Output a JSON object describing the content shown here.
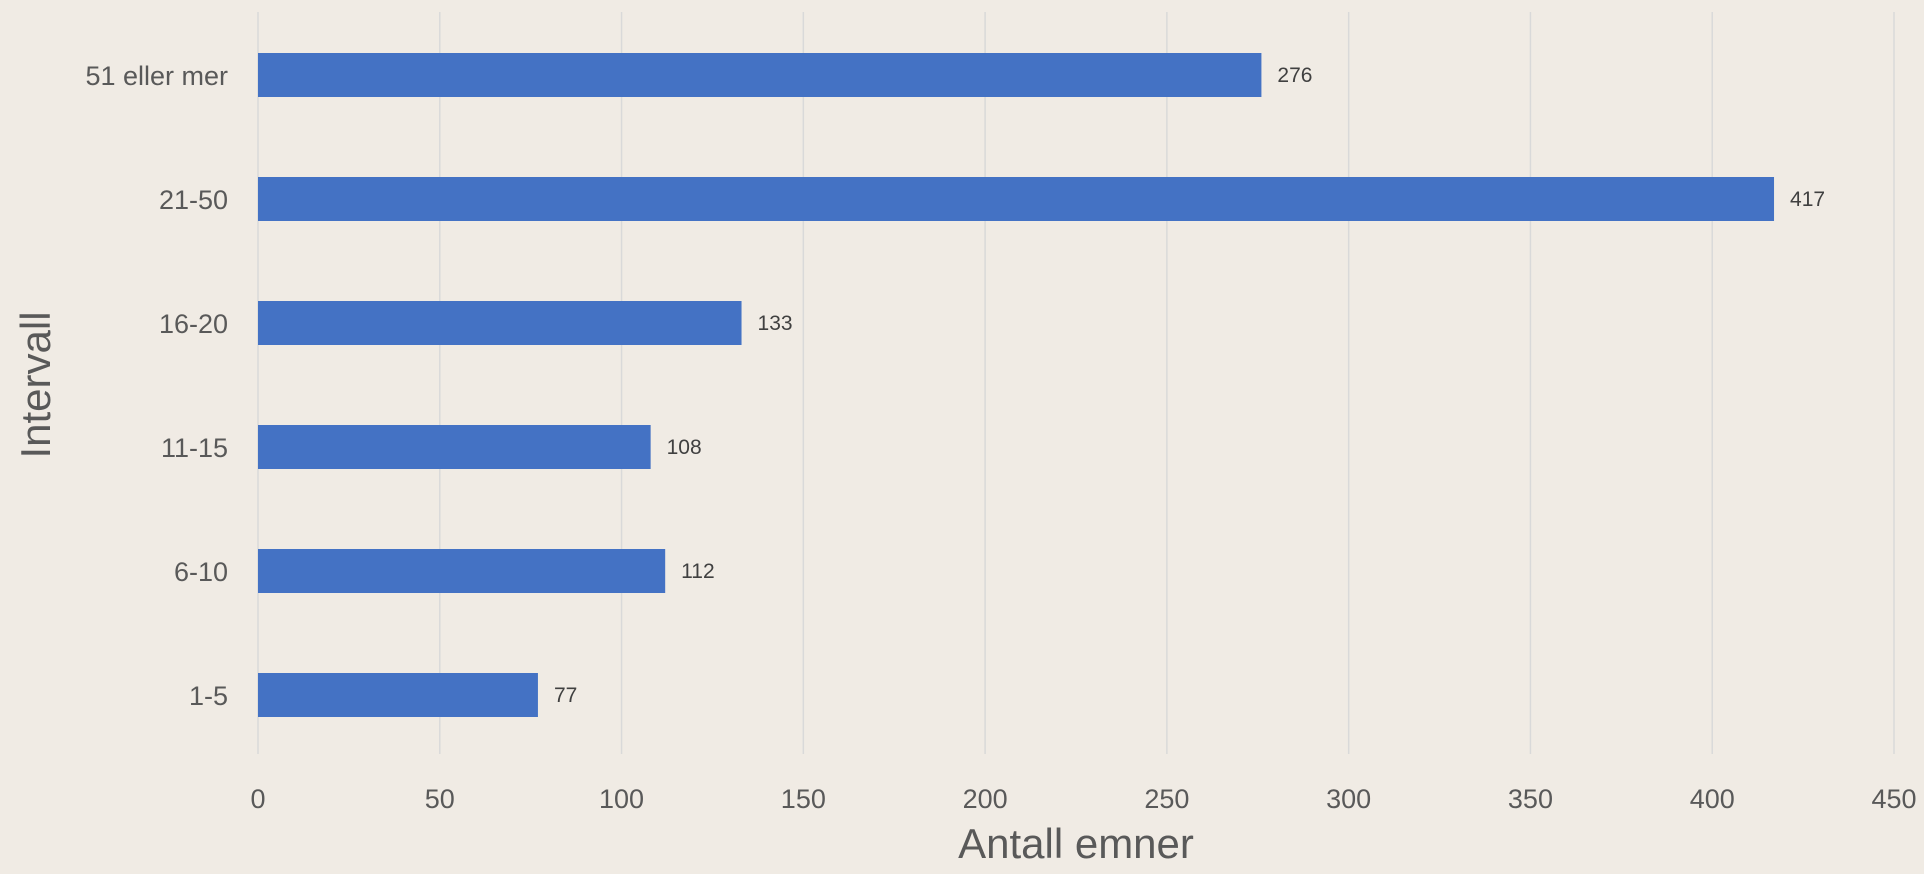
{
  "chart_data": {
    "type": "bar",
    "orientation": "horizontal",
    "categories": [
      "1-5",
      "6-10",
      "11-15",
      "16-20",
      "21-50",
      "51 eller mer"
    ],
    "values": [
      77,
      112,
      108,
      133,
      417,
      276
    ],
    "data_labels": [
      "77",
      "112",
      "108",
      "133",
      "417",
      "276"
    ],
    "xlabel": "Antall emner",
    "ylabel": "Intervall",
    "xlim": [
      0,
      450
    ],
    "x_ticks": [
      "0",
      "50",
      "100",
      "150",
      "200",
      "250",
      "300",
      "350",
      "400",
      "450"
    ],
    "grid": "vertical",
    "legend": "none",
    "colors": {
      "bar": "#4472c4",
      "background": "#f0ebe4",
      "grid": "#d9d9d9",
      "text": "#595959"
    }
  }
}
